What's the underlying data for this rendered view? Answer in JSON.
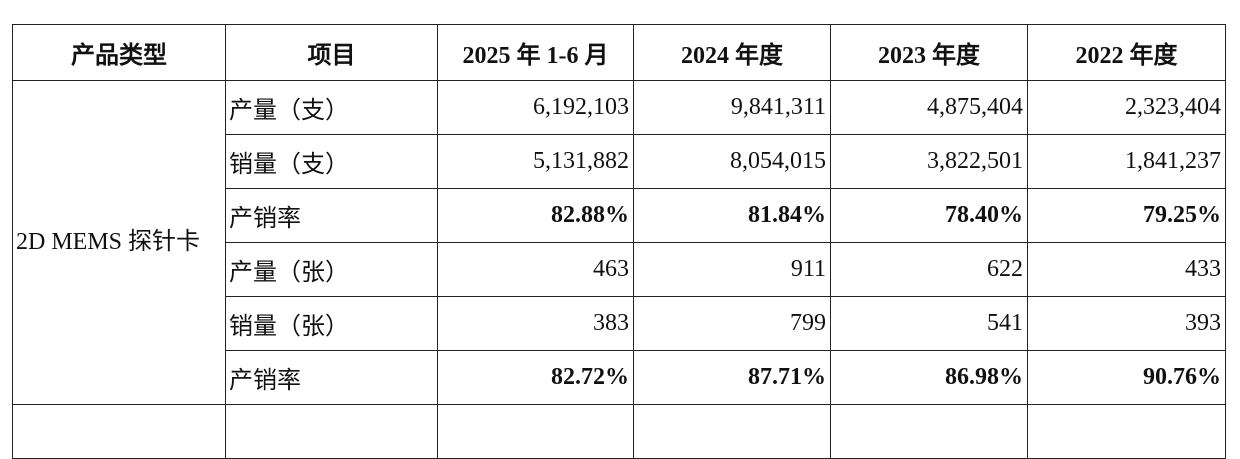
{
  "table": {
    "header": [
      "产品类型",
      "项目",
      "2025 年 1-6 月",
      "2024 年度",
      "2023 年度",
      "2022 年度"
    ],
    "category": "2D MEMS 探针卡",
    "rows": [
      {
        "label": "产量（支）",
        "values": [
          "6,192,103",
          "9,841,311",
          "4,875,404",
          "2,323,404"
        ]
      },
      {
        "label": "销量（支）",
        "values": [
          "5,131,882",
          "8,054,015",
          "3,822,501",
          "1,841,237"
        ]
      },
      {
        "label": "产销率",
        "values": [
          "82.88%",
          "81.84%",
          "78.40%",
          "79.25%"
        ],
        "bold": true
      },
      {
        "label": "产量（张）",
        "values": [
          "463",
          "911",
          "622",
          "433"
        ]
      },
      {
        "label": "销量（张）",
        "values": [
          "383",
          "799",
          "541",
          "393"
        ]
      },
      {
        "label": "产销率",
        "values": [
          "82.72%",
          "87.71%",
          "86.98%",
          "90.76%"
        ],
        "bold": true
      }
    ]
  }
}
